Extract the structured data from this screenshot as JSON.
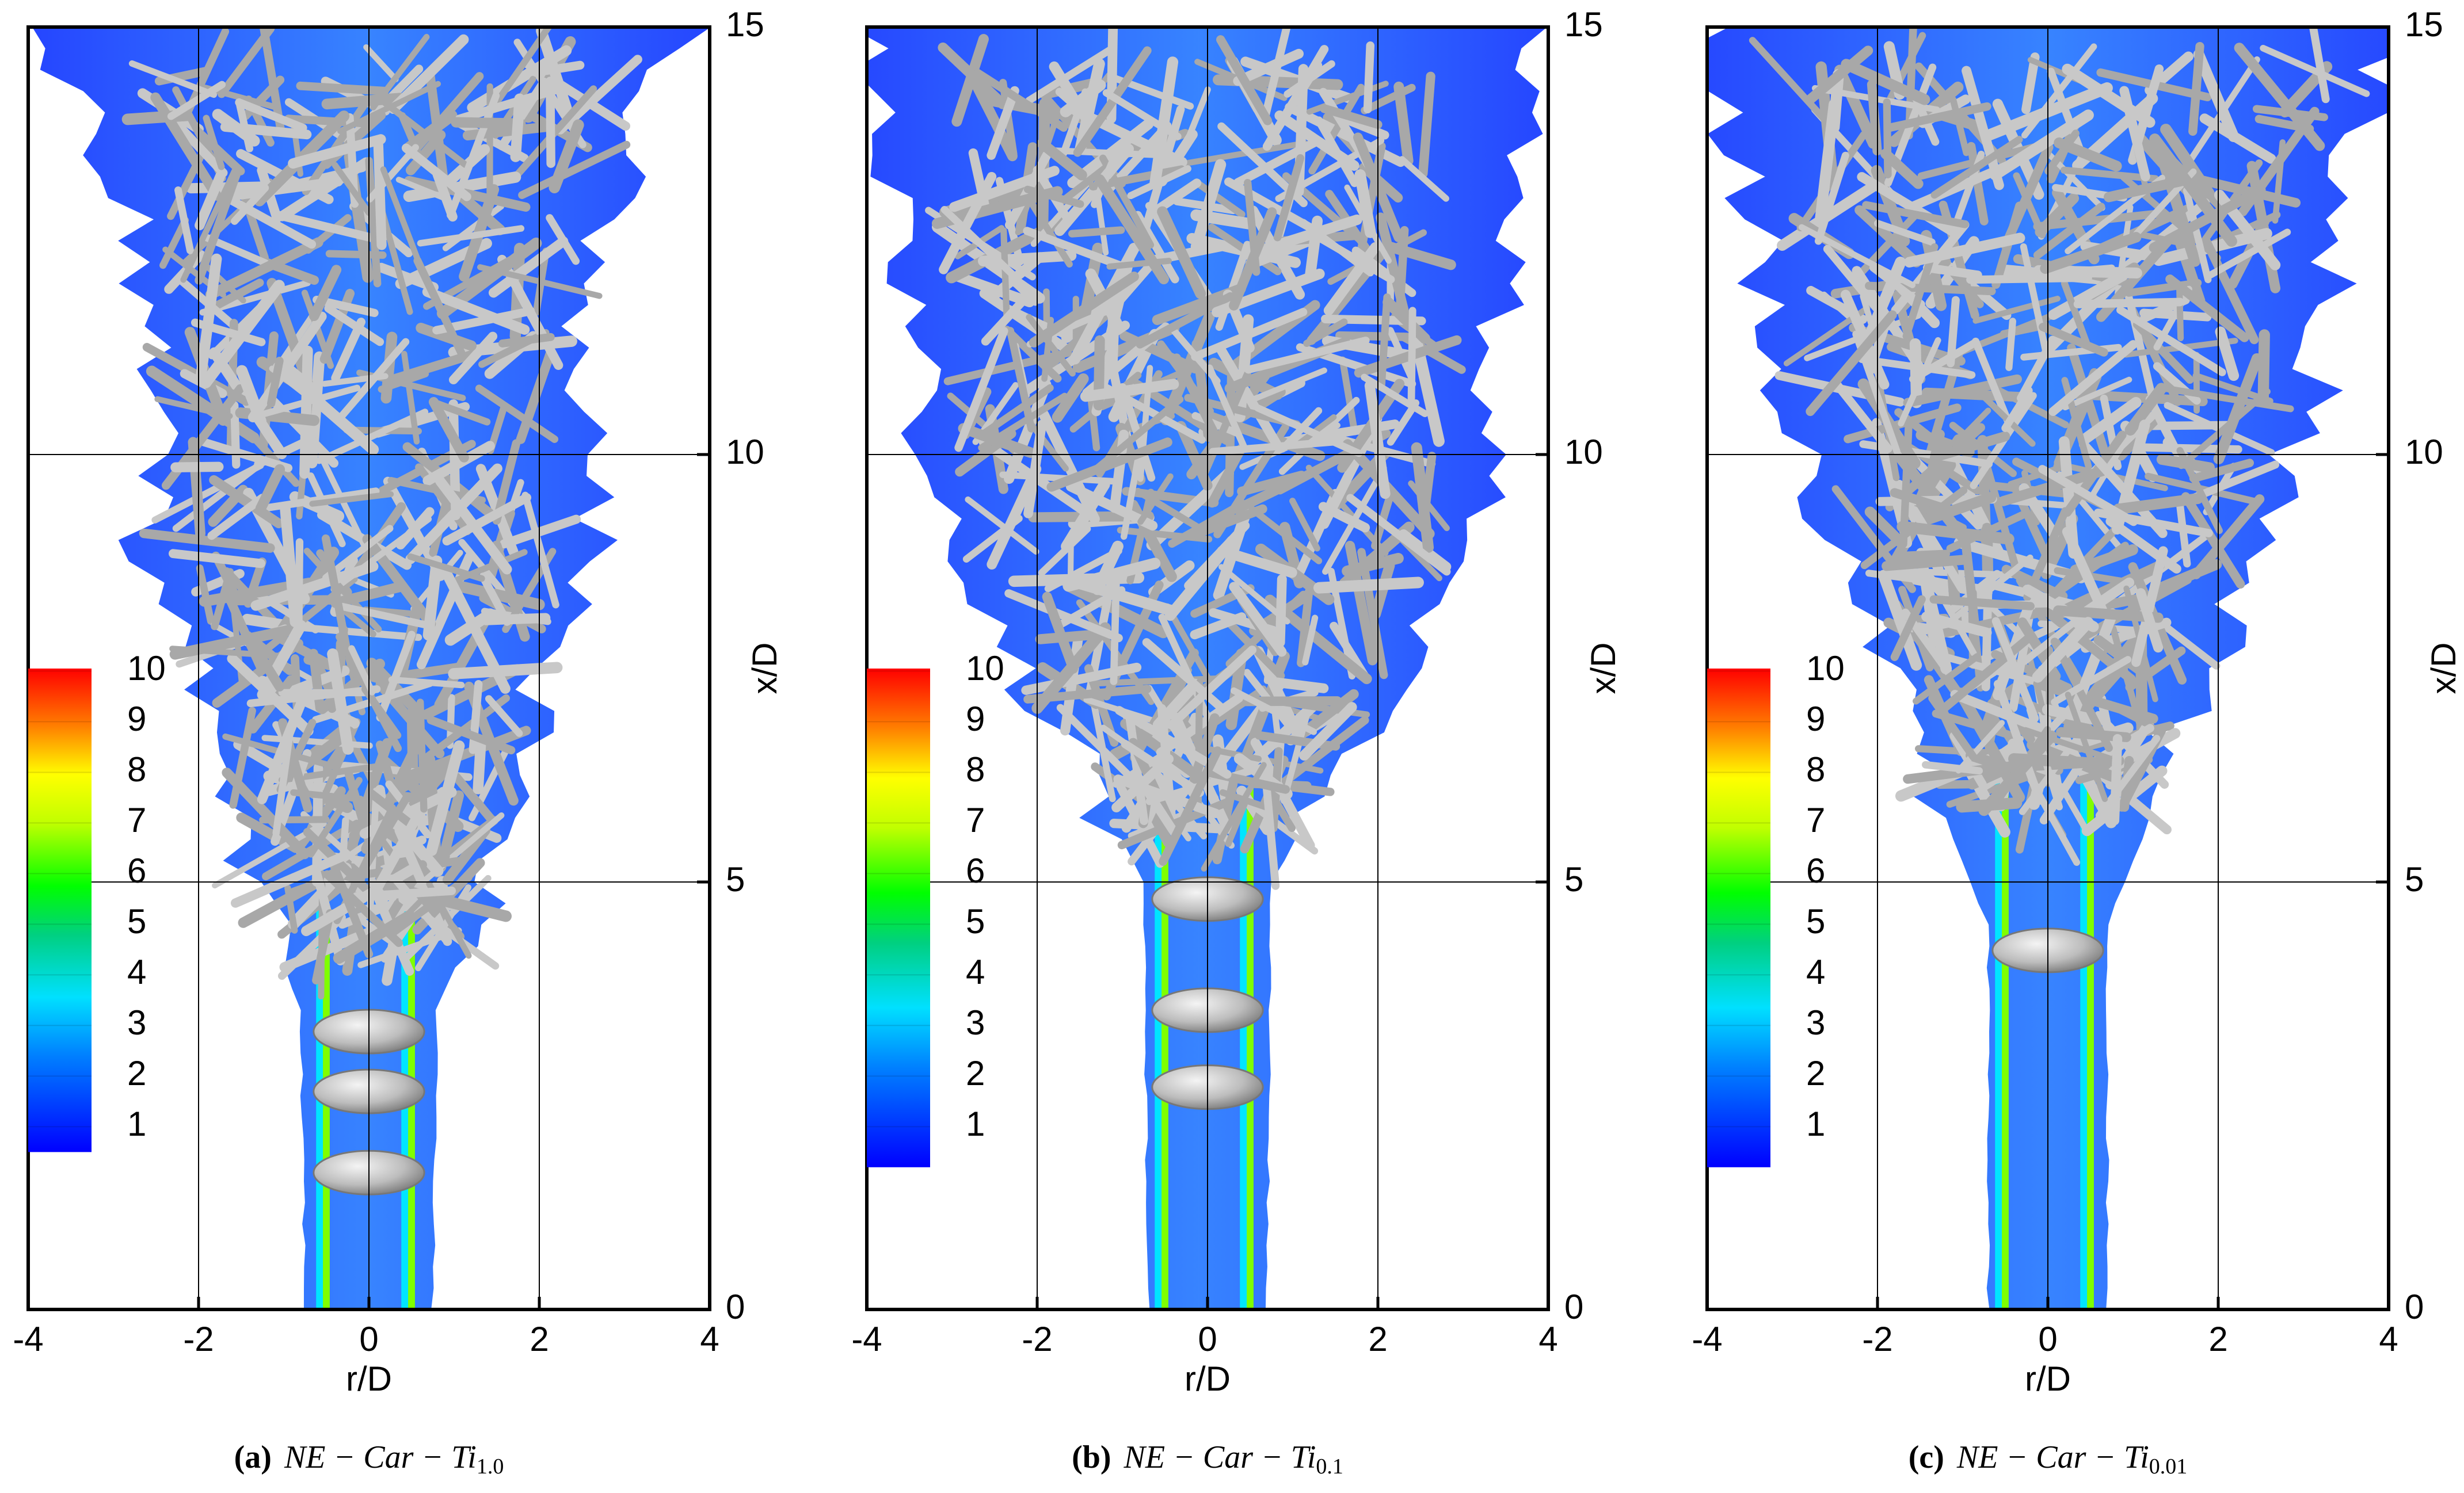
{
  "chart_data": [
    {
      "type": "isosurface",
      "xlabel": "r/D",
      "ylabel": "x/D",
      "xlim": [
        -4,
        4
      ],
      "ylim": [
        0,
        15
      ],
      "xticks": [
        -4,
        -2,
        0,
        2,
        4
      ],
      "yticks": [
        0,
        5,
        10,
        15
      ],
      "grid": true,
      "colorbar": {
        "lim": [
          0.5,
          10.05
        ],
        "ticks": [
          1,
          2,
          3,
          4,
          5,
          6,
          7,
          8,
          9,
          10
        ]
      },
      "caption": {
        "label": "(a)",
        "text": "NE − Car − Ti",
        "subscript": "1.0"
      }
    },
    {
      "type": "isosurface",
      "xlabel": "r/D",
      "ylabel": "x/D",
      "xlim": [
        -4,
        4
      ],
      "ylim": [
        0,
        15
      ],
      "xticks": [
        -4,
        -2,
        0,
        2,
        4
      ],
      "yticks": [
        0,
        5,
        10,
        15
      ],
      "grid": true,
      "colorbar": {
        "lim": [
          0.2,
          10.05
        ],
        "ticks": [
          1,
          2,
          3,
          4,
          5,
          6,
          7,
          8,
          9,
          10
        ]
      },
      "caption": {
        "label": "(b)",
        "text": "NE − Car − Ti",
        "subscript": "0.1"
      }
    },
    {
      "type": "isosurface",
      "xlabel": "r/D",
      "ylabel": "x/D",
      "xlim": [
        -4,
        4
      ],
      "ylim": [
        0,
        15
      ],
      "xticks": [
        -4,
        -2,
        0,
        2,
        4
      ],
      "yticks": [
        0,
        5,
        10,
        15
      ],
      "grid": true,
      "colorbar": {
        "lim": [
          0.2,
          10.05
        ],
        "ticks": [
          1,
          2,
          3,
          4,
          5,
          6,
          7,
          8,
          9,
          10
        ]
      },
      "caption": {
        "label": "(c)",
        "text": "NE − Car − Ti",
        "subscript": "0.01"
      }
    }
  ]
}
